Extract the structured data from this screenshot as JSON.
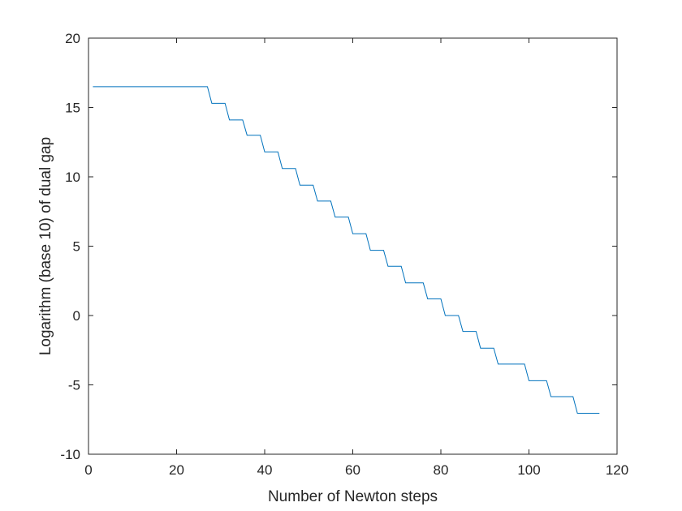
{
  "chart_data": {
    "type": "line",
    "title": "",
    "xlabel": "Number of Newton steps",
    "ylabel": "Logarithm (base 10) of dual gap",
    "xlim": [
      0,
      120
    ],
    "ylim": [
      -10,
      20
    ],
    "xticks": [
      0,
      20,
      40,
      60,
      80,
      100,
      120
    ],
    "yticks": [
      -10,
      -5,
      0,
      5,
      10,
      15,
      20
    ],
    "xtick_labels": [
      "0",
      "20",
      "40",
      "60",
      "80",
      "100",
      "120"
    ],
    "ytick_labels": [
      "-10",
      "-5",
      "0",
      "5",
      "10",
      "15",
      "20"
    ],
    "grid": false,
    "legend": "none",
    "line_color": "#0072BD",
    "series": [
      {
        "x": [
          1,
          27,
          28,
          31,
          32,
          35,
          36,
          39,
          40,
          43,
          44,
          47,
          48,
          51,
          52,
          55,
          56,
          59,
          60,
          63,
          64,
          67,
          68,
          71,
          72,
          76,
          77,
          80,
          81,
          84,
          85,
          88,
          89,
          92,
          93,
          99,
          100,
          104,
          105,
          110,
          111,
          116
        ],
        "y": [
          16.5,
          16.5,
          15.3,
          15.3,
          14.1,
          14.1,
          13.0,
          13.0,
          11.8,
          11.8,
          10.6,
          10.6,
          9.4,
          9.4,
          8.25,
          8.25,
          7.1,
          7.1,
          5.9,
          5.9,
          4.7,
          4.7,
          3.55,
          3.55,
          2.35,
          2.35,
          1.2,
          1.2,
          0.0,
          0.0,
          -1.15,
          -1.15,
          -2.35,
          -2.35,
          -3.5,
          -3.5,
          -4.7,
          -4.7,
          -5.85,
          -5.85,
          -7.05,
          -7.05
        ]
      }
    ]
  }
}
